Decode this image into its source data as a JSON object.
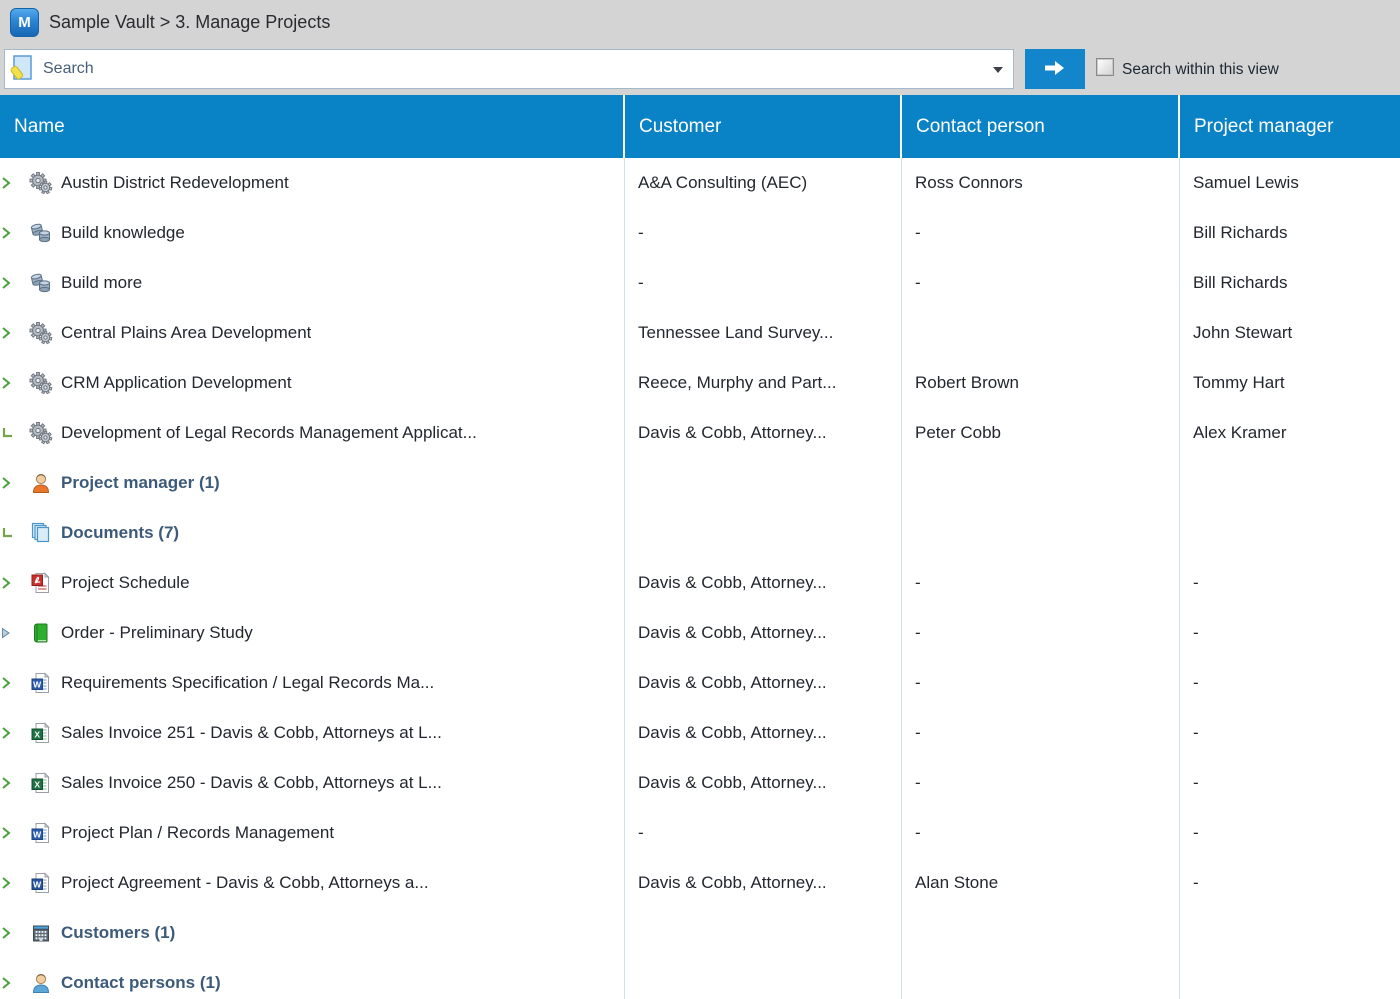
{
  "titlebar": {
    "icon_letter": "M",
    "title": "Sample Vault > 3. Manage Projects"
  },
  "search": {
    "placeholder": "Search",
    "checkbox_label": "Search within this view",
    "checkbox_checked": false
  },
  "colors": {
    "header_blue": "#0a82c6",
    "button_blue": "#1385cb",
    "titlebar_gray": "#d4d4d4",
    "chevron_green": "#4aa03c",
    "group_text": "#3c5a7a",
    "body_text": "#23272e",
    "column_separator": "#cfe0ef"
  },
  "table": {
    "columns": [
      {
        "id": "name",
        "label": "Name"
      },
      {
        "id": "customer",
        "label": "Customer"
      },
      {
        "id": "contact",
        "label": "Contact person"
      },
      {
        "id": "manager",
        "label": "Project manager"
      }
    ],
    "rows": [
      {
        "level": 1,
        "chevron": "collapsed",
        "icon": "project-gears-icon",
        "group": false,
        "name": "Austin District Redevelopment",
        "customer": "A&A Consulting (AEC)",
        "contact": "Ross Connors",
        "manager": "Samuel Lewis"
      },
      {
        "level": 1,
        "chevron": "collapsed",
        "icon": "build-cylinders-icon",
        "group": false,
        "name": "Build knowledge",
        "customer": "-",
        "contact": "-",
        "manager": "Bill Richards"
      },
      {
        "level": 1,
        "chevron": "collapsed",
        "icon": "build-cylinders-icon",
        "group": false,
        "name": "Build more",
        "customer": "-",
        "contact": "-",
        "manager": "Bill Richards"
      },
      {
        "level": 1,
        "chevron": "collapsed",
        "icon": "project-gears-icon",
        "group": false,
        "name": "Central Plains Area Development",
        "customer": "Tennessee Land Survey...",
        "contact": "",
        "manager": "John Stewart"
      },
      {
        "level": 1,
        "chevron": "collapsed",
        "icon": "project-gears-icon",
        "group": false,
        "name": "CRM Application Development",
        "customer": "Reece, Murphy and Part...",
        "contact": "Robert Brown",
        "manager": "Tommy Hart"
      },
      {
        "level": 1,
        "chevron": "expanded",
        "icon": "project-gears-icon",
        "group": false,
        "name": "Development of Legal Records Management Applicat...",
        "customer": "Davis & Cobb, Attorney...",
        "contact": "Peter Cobb",
        "manager": "Alex Kramer"
      },
      {
        "level": 2,
        "chevron": "collapsed",
        "icon": "person-orange-icon",
        "group": true,
        "name": "Project manager (1)",
        "customer": "",
        "contact": "",
        "manager": ""
      },
      {
        "level": 2,
        "chevron": "expanded",
        "icon": "documents-stack-icon",
        "group": true,
        "name": "Documents (7)",
        "customer": "",
        "contact": "",
        "manager": ""
      },
      {
        "level": 3,
        "chevron": "collapsed",
        "icon": "pdf-file-icon",
        "group": false,
        "name": "Project Schedule",
        "customer": "Davis & Cobb, Attorney...",
        "contact": "-",
        "manager": "-"
      },
      {
        "level": 3,
        "chevron": "triangle",
        "icon": "book-green-icon",
        "group": false,
        "name": "Order - Preliminary Study",
        "customer": "Davis & Cobb, Attorney...",
        "contact": "-",
        "manager": "-"
      },
      {
        "level": 3,
        "chevron": "collapsed",
        "icon": "word-file-icon",
        "group": false,
        "name": "Requirements Specification / Legal Records Ma...",
        "customer": "Davis & Cobb, Attorney...",
        "contact": "-",
        "manager": "-"
      },
      {
        "level": 3,
        "chevron": "collapsed",
        "icon": "excel-file-icon",
        "group": false,
        "name": "Sales Invoice 251 - Davis & Cobb, Attorneys at L...",
        "customer": "Davis & Cobb, Attorney...",
        "contact": "-",
        "manager": "-"
      },
      {
        "level": 3,
        "chevron": "collapsed",
        "icon": "excel-file-icon",
        "group": false,
        "name": "Sales Invoice 250 - Davis & Cobb, Attorneys at L...",
        "customer": "Davis & Cobb, Attorney...",
        "contact": "-",
        "manager": "-"
      },
      {
        "level": 3,
        "chevron": "collapsed",
        "icon": "word-file-icon",
        "group": false,
        "name": "Project Plan / Records Management",
        "customer": "-",
        "contact": "-",
        "manager": "-"
      },
      {
        "level": 3,
        "chevron": "collapsed",
        "icon": "word-template-icon",
        "group": false,
        "name": "Project Agreement - Davis & Cobb, Attorneys a...",
        "customer": "Davis & Cobb, Attorney...",
        "contact": "Alan Stone",
        "manager": "-"
      },
      {
        "level": 2,
        "chevron": "collapsed",
        "icon": "building-icon",
        "group": true,
        "name": "Customers (1)",
        "customer": "",
        "contact": "",
        "manager": ""
      },
      {
        "level": 2,
        "chevron": "collapsed",
        "icon": "person-blue-icon",
        "group": true,
        "name": "Contact persons (1)",
        "customer": "",
        "contact": "",
        "manager": ""
      }
    ]
  }
}
